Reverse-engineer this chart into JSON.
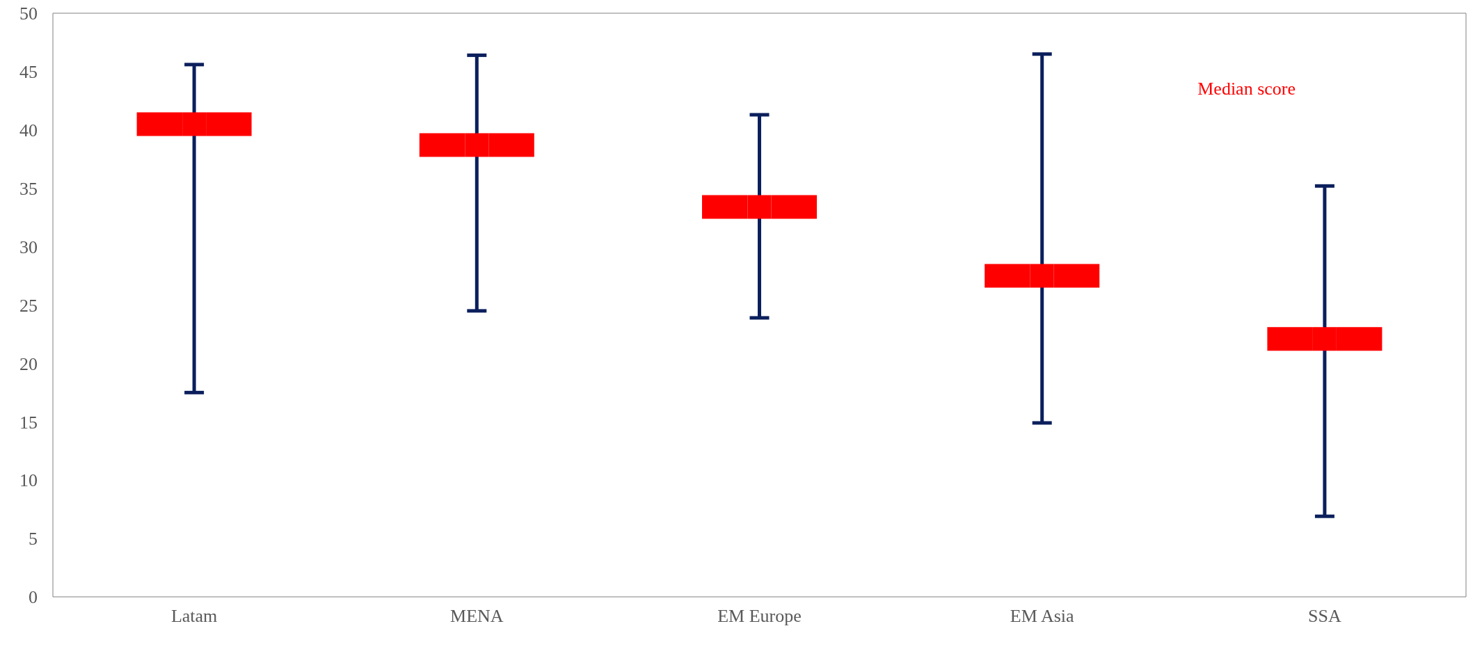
{
  "chart_data": {
    "type": "scatter",
    "categories": [
      "Latam",
      "MENA",
      "EM Europe",
      "EM Asia",
      "SSA"
    ],
    "series": [
      {
        "name": "Median score",
        "color": "#ff0000",
        "x": [
          "Latam",
          "MENA",
          "EM Europe",
          "EM Asia",
          "SSA"
        ],
        "values": [
          40.5,
          38.7,
          33.4,
          27.5,
          22.1
        ],
        "errors": [
          [
            17.5,
            45.6
          ],
          [
            24.5,
            46.4
          ],
          [
            23.9,
            41.3
          ],
          [
            14.9,
            46.5
          ],
          [
            6.9,
            35.2
          ]
        ]
      }
    ],
    "ylim": [
      0,
      50
    ],
    "yticks": [
      0,
      5,
      10,
      15,
      20,
      25,
      30,
      35,
      40,
      45,
      50
    ],
    "grid": false,
    "marker": "square"
  }
}
